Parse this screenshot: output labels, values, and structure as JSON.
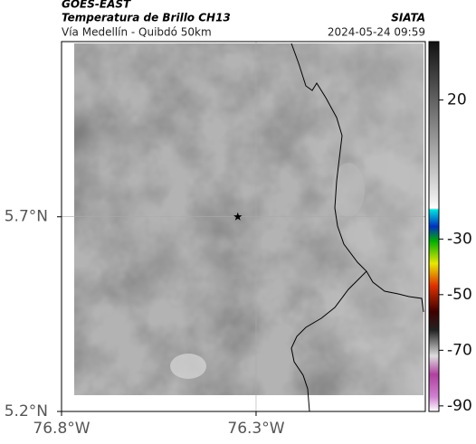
{
  "header": {
    "source": "GOES-EAST",
    "product": "Temperatura de Brillo CH13",
    "org": "SIATA",
    "region": "Vía Medellín - Quibdó 50km",
    "timestamp": "2024-05-24 09:59"
  },
  "map": {
    "lonlim": [
      -76.8,
      -75.865
    ],
    "latlim": [
      5.2,
      6.15
    ],
    "lon_ticks": [
      {
        "value": -76.8,
        "label": "76.8°W"
      },
      {
        "value": -76.3,
        "label": "76.3°W"
      }
    ],
    "lat_ticks": [
      {
        "value": 5.2,
        "label": "5.2°N"
      },
      {
        "value": 5.7,
        "label": "5.7°N"
      }
    ],
    "grid": true,
    "marker": {
      "lon": -76.347,
      "lat": 5.7
    }
  },
  "colorbar": {
    "lim": [
      -92,
      41
    ],
    "ticks": [
      20,
      -30,
      -50,
      -70,
      -90
    ]
  }
}
